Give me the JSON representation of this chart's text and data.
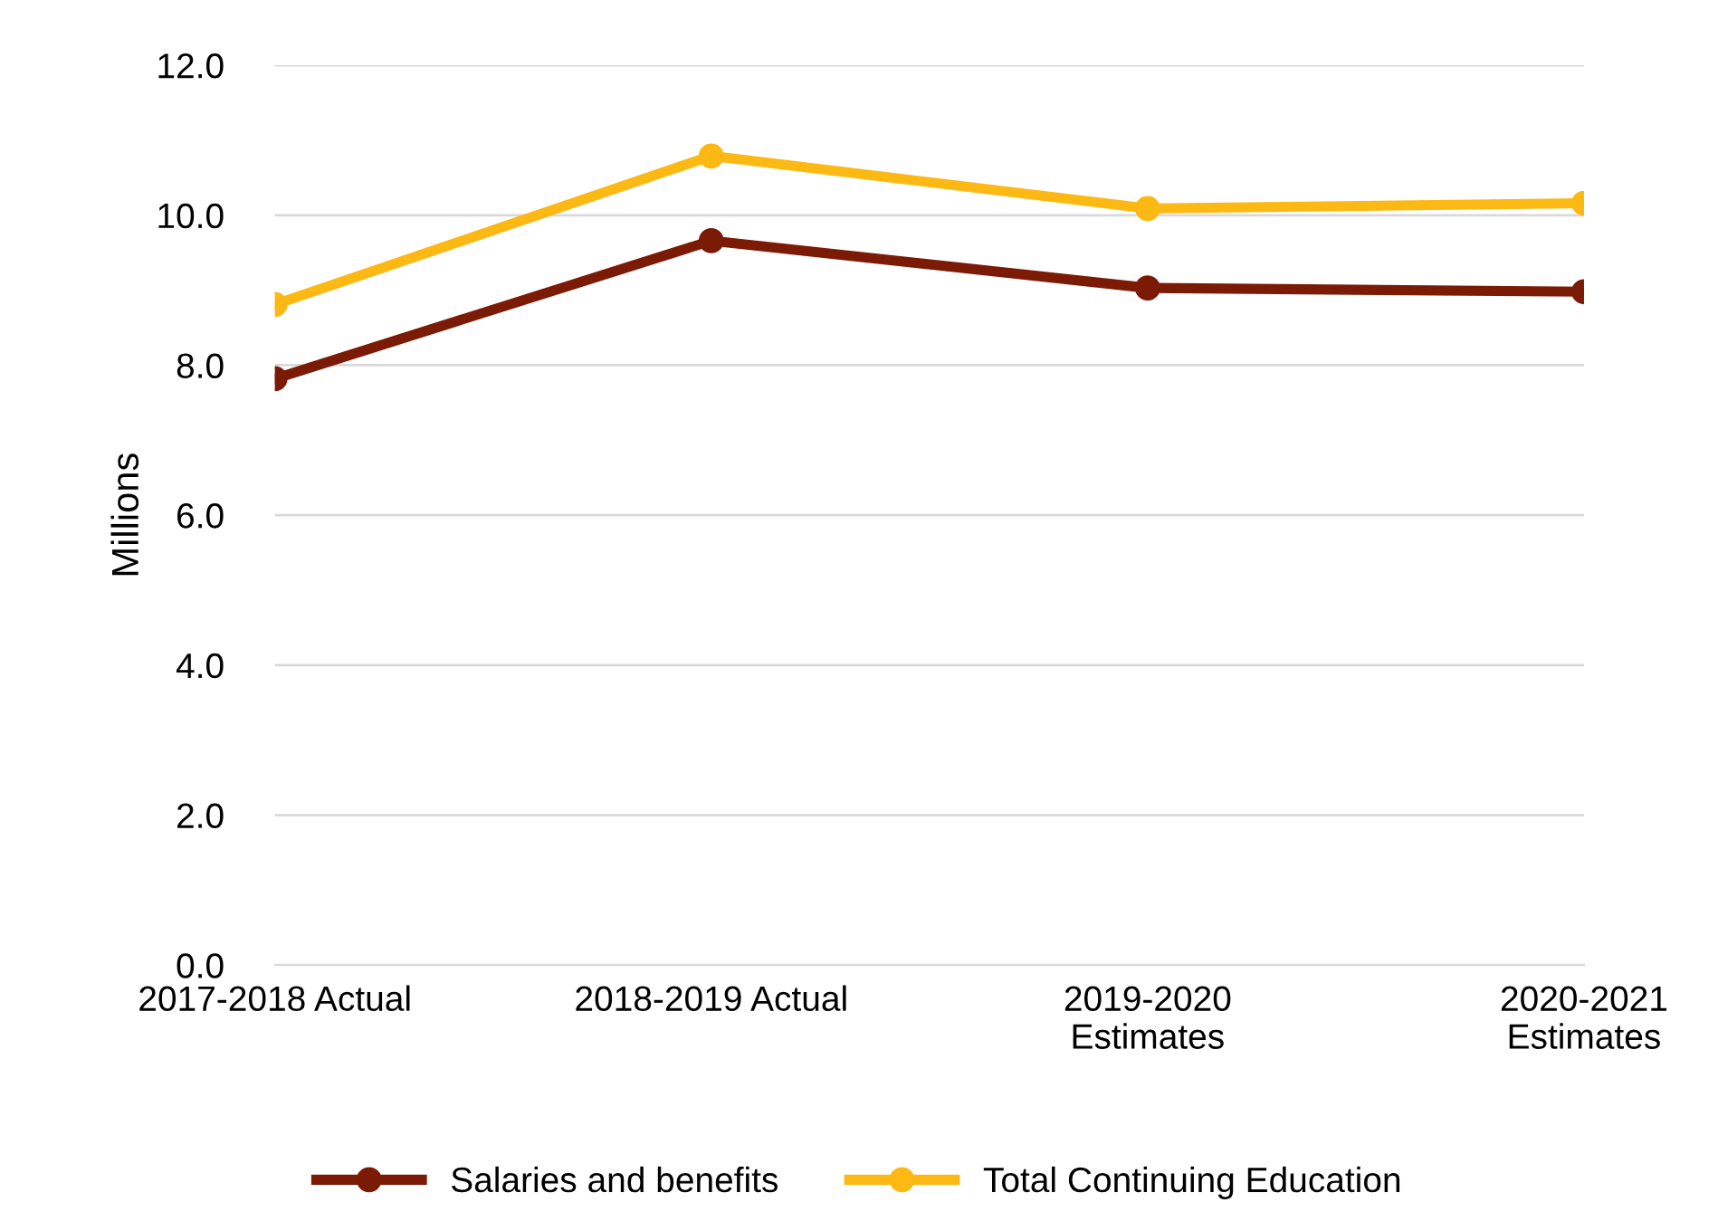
{
  "chart_data": {
    "type": "line",
    "ylabel": "Millions",
    "categories": [
      "2017-2018 Actual",
      "2018-2019 Actual",
      "2019-2020\nEstimates",
      "2020-2021\nEstimates"
    ],
    "series": [
      {
        "name": "Salaries and benefits",
        "color": "#7b1a05",
        "values": [
          7.82,
          9.66,
          9.03,
          8.98
        ]
      },
      {
        "name": "Total Continuing Education",
        "color": "#fdb913",
        "values": [
          8.81,
          10.79,
          10.09,
          10.16
        ]
      }
    ],
    "ylim": [
      0,
      12
    ],
    "yticks": [
      {
        "value": 0,
        "label": "0.0"
      },
      {
        "value": 2,
        "label": "2.0"
      },
      {
        "value": 4,
        "label": "4.0"
      },
      {
        "value": 6,
        "label": "6.0"
      },
      {
        "value": 8,
        "label": "8.0"
      },
      {
        "value": 10,
        "label": "10.0"
      },
      {
        "value": 12,
        "label": "12.0"
      }
    ],
    "grid": "y",
    "legend": "bottom",
    "marker": "circle",
    "line_style": "solid"
  }
}
